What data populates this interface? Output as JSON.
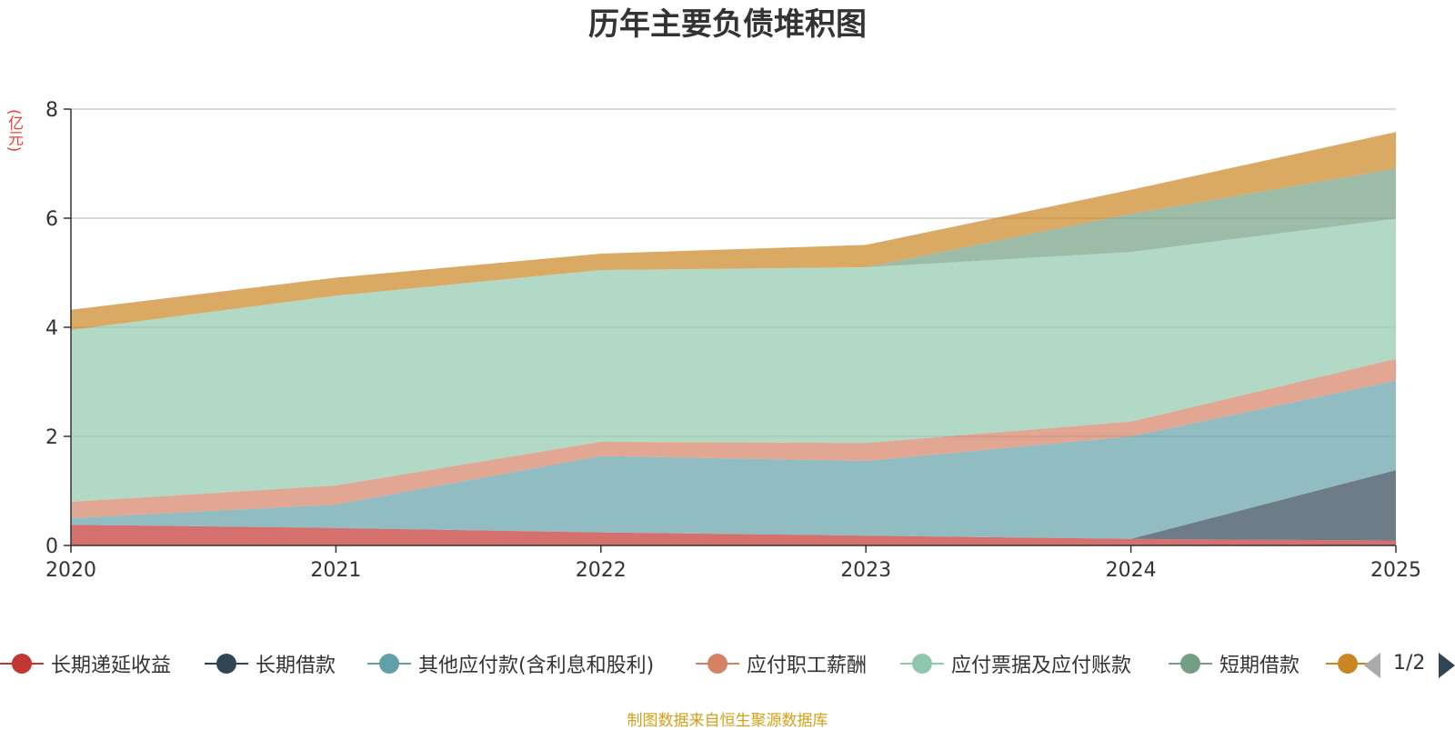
{
  "chart_data": {
    "type": "area",
    "stacked": true,
    "title": "历年主要负债堆积图",
    "unit_label": "(亿元)",
    "x": [
      "2020",
      "2021",
      "2022",
      "2023",
      "2024",
      "2025"
    ],
    "y_ticks": [
      "0",
      "2",
      "4",
      "6",
      "8"
    ],
    "ylim": [
      0,
      8
    ],
    "grid": true,
    "legend_position": "bottom",
    "series": [
      {
        "name": "长期递延收益",
        "color": "#c23531",
        "values": [
          0.38,
          0.32,
          0.24,
          0.18,
          0.12,
          0.09
        ]
      },
      {
        "name": "长期借款",
        "color": "#2f4554",
        "values": [
          0.0,
          0.0,
          0.0,
          0.0,
          0.0,
          1.29
        ]
      },
      {
        "name": "其他应付款(含利息和股利)",
        "color": "#61a0a8",
        "values": [
          0.12,
          0.43,
          1.4,
          1.37,
          1.88,
          1.64
        ]
      },
      {
        "name": "应付职工薪酬",
        "color": "#d48265",
        "values": [
          0.3,
          0.35,
          0.26,
          0.33,
          0.27,
          0.4
        ]
      },
      {
        "name": "应付票据及应付账款",
        "color": "#91c7ae",
        "values": [
          3.15,
          3.48,
          3.15,
          3.22,
          3.11,
          2.57
        ]
      },
      {
        "name": "短期借款",
        "color": "#749f83",
        "values": [
          0.0,
          0.0,
          0.0,
          0.0,
          0.7,
          0.92
        ]
      },
      {
        "name": "",
        "color": "#ca8622",
        "values": [
          0.37,
          0.33,
          0.3,
          0.41,
          0.44,
          0.67
        ]
      }
    ]
  },
  "legend": {
    "page": "1/2"
  },
  "source_note": "制图数据来自恒生聚源数据库"
}
